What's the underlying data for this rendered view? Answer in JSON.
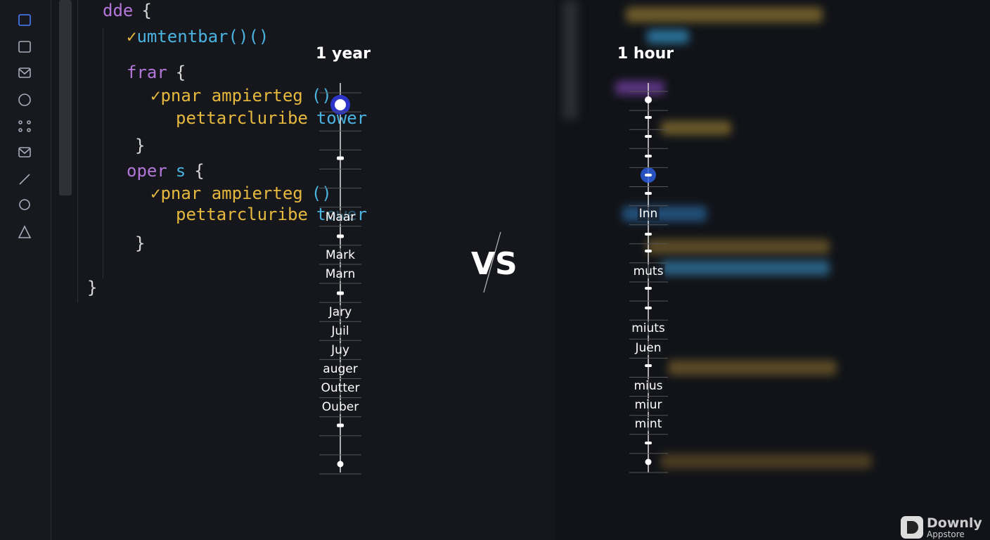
{
  "code": {
    "lines": [
      [
        "dde",
        "{"
      ],
      [
        "✓",
        "umtentbar()()"
      ],
      [
        "frar",
        "{"
      ],
      [
        "✓",
        "pnar ampierteg",
        "()"
      ],
      [
        "pettarcluribe",
        "tower"
      ],
      [
        "}"
      ],
      [
        "oper",
        "s",
        "{"
      ],
      [
        "✓",
        "pnar ampierteg",
        "()"
      ],
      [
        "pettarcluribe",
        "tower"
      ],
      [
        "}"
      ],
      [
        "}"
      ]
    ]
  },
  "left_timeline": {
    "title": "1 year",
    "labels": [
      "Maar",
      "Mark",
      "Marn",
      "Jary",
      "Juil",
      "Juy",
      "auger",
      "Outter",
      "Ouber"
    ]
  },
  "versus": "VS",
  "right_timeline": {
    "title": "1 hour",
    "labels": [
      "Inn",
      "muts",
      "miuts",
      "Juen",
      "mius",
      "miur",
      "mint"
    ]
  },
  "watermark": {
    "name": "Downly",
    "sub": "Appstore"
  }
}
